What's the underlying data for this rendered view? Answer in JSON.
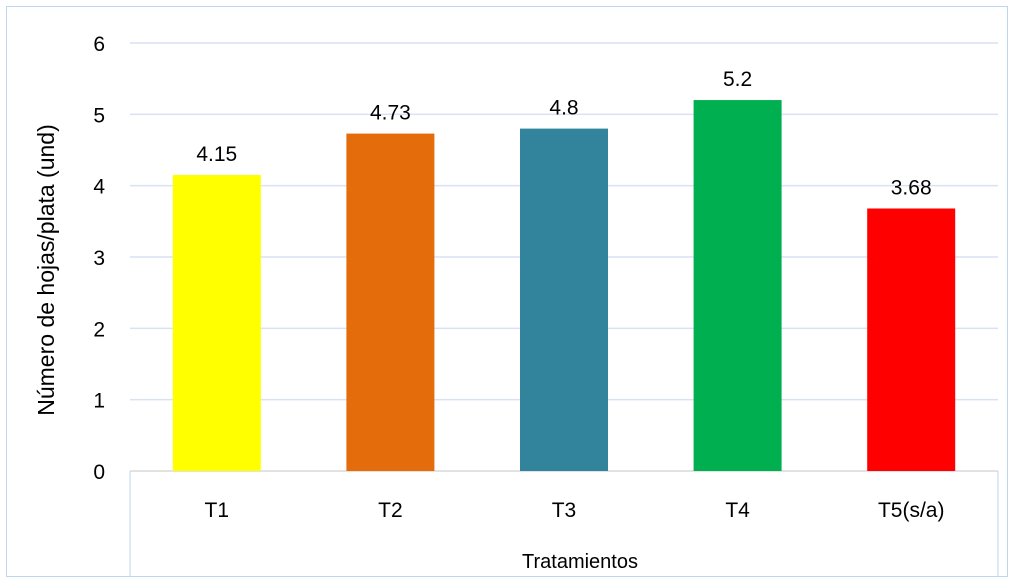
{
  "chart_data": {
    "type": "bar",
    "categories": [
      "T1",
      "T2",
      "T3",
      "T4",
      "T5(s/a)"
    ],
    "values": [
      4.15,
      4.73,
      4.8,
      5.2,
      3.68
    ],
    "data_labels": [
      "4.15",
      "4.73",
      "4.8",
      "5.2",
      "3.68"
    ],
    "bar_colors": [
      "#FFFF00",
      "#E46C0A",
      "#31849B",
      "#00B050",
      "#FF0000"
    ],
    "title": "",
    "xlabel": "Tratamientos",
    "ylabel": "Número de hojas/plata (und)",
    "ylim": [
      0,
      6
    ],
    "yticks": [
      0,
      1,
      2,
      3,
      4,
      5,
      6
    ],
    "grid": true,
    "legend": "none"
  },
  "colors": {
    "grid": "#D9E1F2",
    "frame_border": "#BDD7EE",
    "axis": "#D9D9D9"
  }
}
